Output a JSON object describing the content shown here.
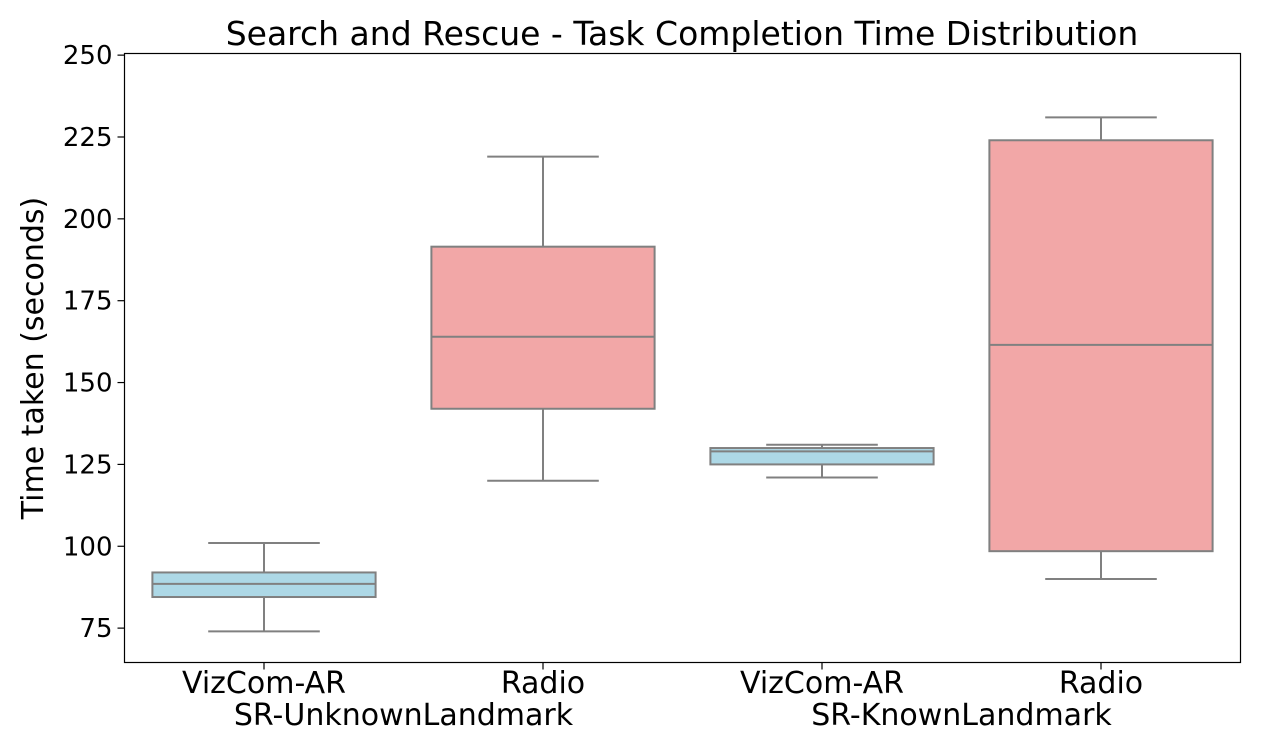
{
  "chart_data": {
    "type": "box",
    "title": "Search and Rescue - Task Completion Time Distribution",
    "xlabel": "",
    "ylabel": "Time taken (seconds)",
    "ylim": [
      64.5,
      250.5
    ],
    "yticks": [
      75,
      100,
      125,
      150,
      175,
      200,
      225,
      250
    ],
    "grid": false,
    "groups": [
      {
        "label": "SR-UnknownLandmark",
        "boxes": [
          {
            "category": "VizCom-AR",
            "color": "#add8e6",
            "whisker_low": 74,
            "q1": 84.5,
            "median": 88.5,
            "q3": 92,
            "whisker_high": 101
          },
          {
            "category": "Radio",
            "color": "#f2a7a7",
            "whisker_low": 120,
            "q1": 142,
            "median": 164,
            "q3": 191.5,
            "whisker_high": 219
          }
        ]
      },
      {
        "label": "SR-KnownLandmark",
        "boxes": [
          {
            "category": "VizCom-AR",
            "color": "#add8e6",
            "whisker_low": 121,
            "q1": 125,
            "median": 129,
            "q3": 130,
            "whisker_high": 131
          },
          {
            "category": "Radio",
            "color": "#f2a7a7",
            "whisker_low": 90,
            "q1": 98.5,
            "median": 161.5,
            "q3": 224,
            "whisker_high": 231
          }
        ]
      }
    ]
  },
  "style": {
    "edge_color": "#808080",
    "axis_color": "#000000"
  }
}
